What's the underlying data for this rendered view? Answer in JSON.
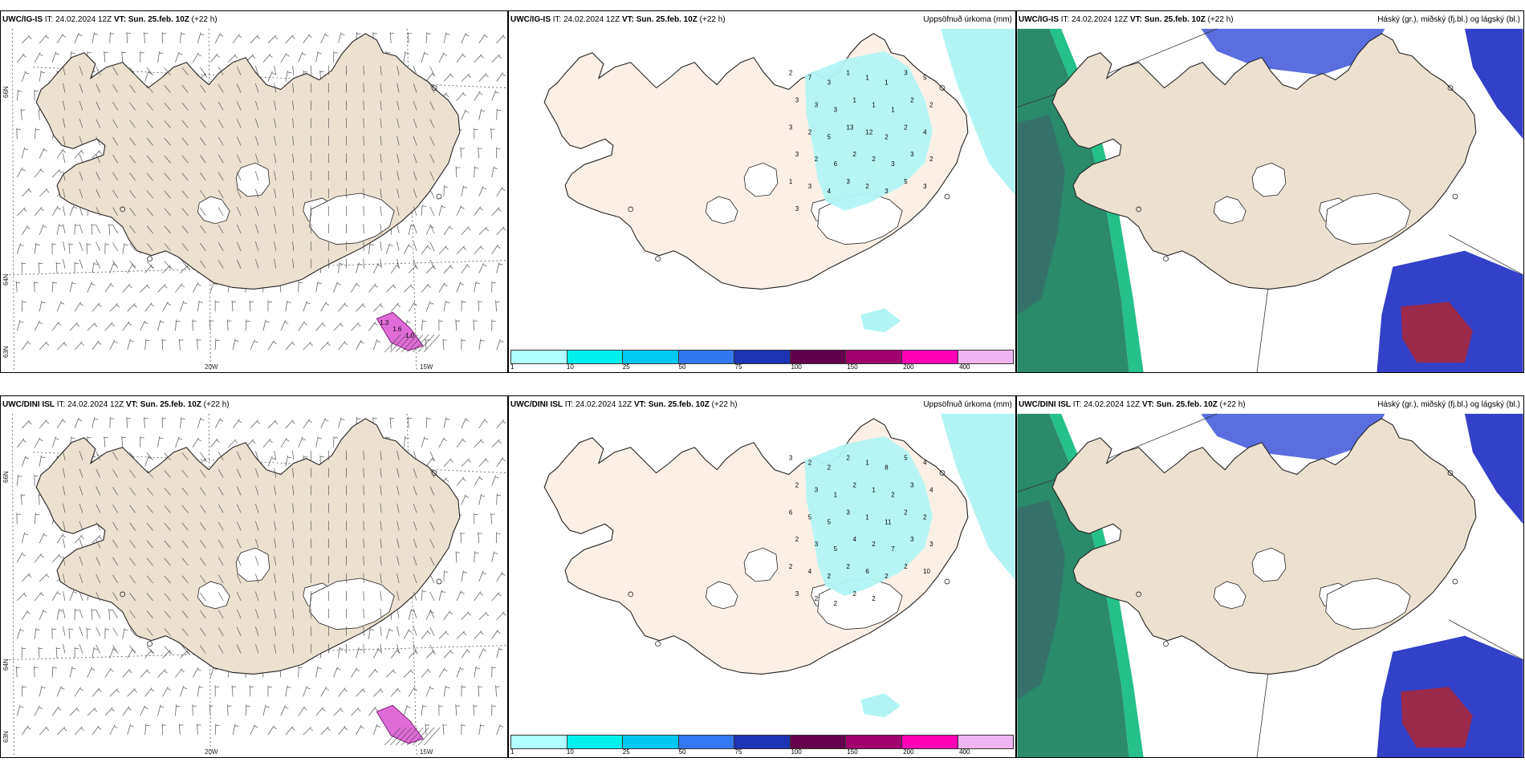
{
  "panels": [
    {
      "id": "p1",
      "model": "UWC/IG-IS",
      "it_label": "IT:",
      "it_value": "24.02.2024 12Z",
      "vt_label": "VT:",
      "vt_value": "Sun. 25.feb. 10Z",
      "lead": "(+22 h)",
      "right_title": "",
      "kind": "wind",
      "geo": {
        "lon1": "20W",
        "lon2": "15W",
        "lat1": "66N",
        "lat2": "64N",
        "lat3": "63N"
      },
      "annot": [
        "1.3",
        "1.6",
        "1.0"
      ]
    },
    {
      "id": "p2",
      "model": "UWC/IG-IS",
      "it_label": "IT:",
      "it_value": "24.02.2024 12Z",
      "vt_label": "VT:",
      "vt_value": "Sun. 25.feb. 10Z",
      "lead": "(+22 h)",
      "right_title": "Uppsöfnuð úrkoma (mm)",
      "kind": "precip",
      "numbers": [
        "2",
        "7",
        "3",
        "1",
        "1",
        "1",
        "3",
        "5",
        "3",
        "3",
        "3",
        "1",
        "1",
        "1",
        "2",
        "2",
        "3",
        "2",
        "5",
        "13",
        "12",
        "2",
        "2",
        "4",
        "3",
        "2",
        "6",
        "2",
        "2",
        "3",
        "3",
        "2",
        "1",
        "3",
        "4",
        "3",
        "2",
        "3",
        "5",
        "3",
        "3"
      ]
    },
    {
      "id": "p3",
      "model": "UWC/IG-IS",
      "it_label": "IT:",
      "it_value": "24.02.2024 12Z",
      "vt_label": "VT:",
      "vt_value": "Sun. 25.feb. 10Z",
      "lead": "(+22 h)",
      "right_title": "Háský (gr.), miðský (fj.bl.) og lágský (bl.)",
      "kind": "cloud"
    },
    {
      "id": "p4",
      "model": "UWC/DINI ISL",
      "it_label": "IT:",
      "it_value": "24.02.2024 12Z",
      "vt_label": "VT:",
      "vt_value": "Sun. 25.feb. 10Z",
      "lead": "(+22 h)",
      "right_title": "",
      "kind": "wind",
      "geo": {
        "lon1": "20W",
        "lon2": "15W",
        "lat1": "66N",
        "lat2": "64N",
        "lat3": "63N"
      },
      "annot": []
    },
    {
      "id": "p5",
      "model": "UWC/DINI ISL",
      "it_label": "IT:",
      "it_value": "24.02.2024 12Z",
      "vt_label": "VT:",
      "vt_value": "Sun. 25.feb. 10Z",
      "lead": "(+22 h)",
      "right_title": "Uppsöfnuð úrkoma (mm)",
      "kind": "precip",
      "numbers": [
        "3",
        "2",
        "2",
        "2",
        "1",
        "8",
        "5",
        "4",
        "2",
        "3",
        "1",
        "2",
        "1",
        "2",
        "3",
        "4",
        "6",
        "5",
        "5",
        "3",
        "1",
        "11",
        "2",
        "2",
        "2",
        "3",
        "5",
        "4",
        "2",
        "7",
        "3",
        "3",
        "2",
        "4",
        "2",
        "2",
        "6",
        "2",
        "2",
        "10",
        "3",
        "2",
        "2",
        "2",
        "2"
      ]
    },
    {
      "id": "p6",
      "model": "UWC/DINI ISL",
      "it_label": "IT:",
      "it_value": "24.02.2024 12Z",
      "vt_label": "VT:",
      "vt_value": "Sun. 25.feb. 10Z",
      "lead": "(+22 h)",
      "right_title": "Háský (gr.), miðský (fj.bl.) og lágský (bl.)",
      "kind": "cloud"
    }
  ],
  "colorbar": {
    "colors": [
      "#b2ffff",
      "#00f0f0",
      "#00c8f0",
      "#3278f0",
      "#1e32b4",
      "#64004b",
      "#a0006e",
      "#ff00b4",
      "#f0b4f0"
    ],
    "labels": [
      "1",
      "10",
      "25",
      "50",
      "75",
      "100",
      "150",
      "200",
      "400"
    ]
  },
  "colors": {
    "land": "#ece0d0",
    "land_precip": "#fcf0e6",
    "precip": "#b2f4f4",
    "cloud_high": "#2a8a6a",
    "cloud_mid": "#5a6ee0",
    "cloud_low": "#3340c8",
    "severe": "#9b2a4a"
  }
}
